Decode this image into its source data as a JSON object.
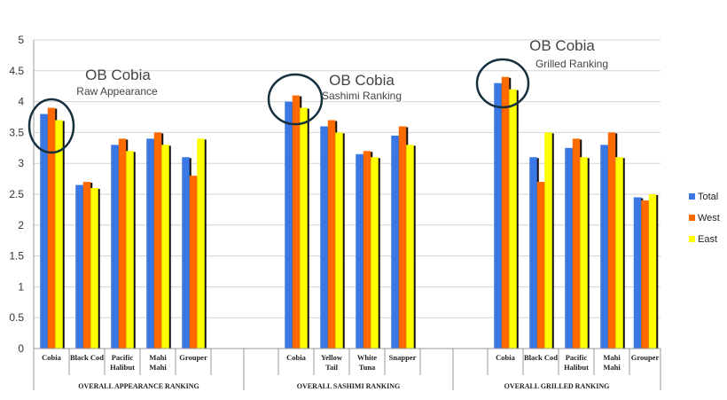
{
  "chart_data": {
    "type": "bar",
    "ylim": [
      0,
      5
    ],
    "yticks": [
      "0",
      "0.5",
      "1",
      "1.5",
      "2",
      "2.5",
      "3",
      "3.5",
      "4",
      "4.5",
      "5"
    ],
    "grid": true,
    "legend_position": "right",
    "series": [
      {
        "name": "Total",
        "color": "#3a78e6"
      },
      {
        "name": "West",
        "color": "#ff6a00"
      },
      {
        "name": "East",
        "color": "#ffff00"
      }
    ],
    "groups": [
      {
        "label": "OVERALL APPEARANCE RANKING",
        "annotation": {
          "title": "OB Cobia",
          "subtitle": "Raw Appearance"
        },
        "categories": [
          {
            "label": [
              "Cobia"
            ],
            "values": [
              3.8,
              3.9,
              3.7
            ]
          },
          {
            "label": [
              "Black Cod"
            ],
            "values": [
              2.65,
              2.7,
              2.6
            ]
          },
          {
            "label": [
              "Pacific",
              "Halibut"
            ],
            "values": [
              3.3,
              3.4,
              3.2
            ]
          },
          {
            "label": [
              "Mahi",
              "Mahi"
            ],
            "values": [
              3.4,
              3.5,
              3.3
            ]
          },
          {
            "label": [
              "Grouper"
            ],
            "values": [
              3.1,
              2.8,
              3.4
            ]
          }
        ]
      },
      {
        "label": "OVERALL SASHIMI RANKING",
        "annotation": {
          "title": "OB Cobia",
          "subtitle": "Sashimi Ranking"
        },
        "categories": [
          {
            "label": [
              "Cobia"
            ],
            "values": [
              4.0,
              4.1,
              3.9
            ]
          },
          {
            "label": [
              "Yellow",
              "Tail"
            ],
            "values": [
              3.6,
              3.7,
              3.5
            ]
          },
          {
            "label": [
              "White",
              "Tuna"
            ],
            "values": [
              3.15,
              3.2,
              3.1
            ]
          },
          {
            "label": [
              "Snapper"
            ],
            "values": [
              3.45,
              3.6,
              3.3
            ]
          }
        ]
      },
      {
        "label": "OVERALL GRILLED RANKING",
        "annotation": {
          "title": "OB Cobia",
          "subtitle": "Grilled Ranking"
        },
        "categories": [
          {
            "label": [
              "Cobia"
            ],
            "values": [
              4.3,
              4.4,
              4.2
            ]
          },
          {
            "label": [
              "Black Cod"
            ],
            "values": [
              3.1,
              2.7,
              3.5
            ]
          },
          {
            "label": [
              "Pacific",
              "Halibut"
            ],
            "values": [
              3.25,
              3.4,
              3.1
            ]
          },
          {
            "label": [
              "Mahi",
              "Mahi"
            ],
            "values": [
              3.3,
              3.5,
              3.1
            ]
          },
          {
            "label": [
              "Grouper"
            ],
            "values": [
              2.45,
              2.4,
              2.5
            ]
          }
        ]
      }
    ]
  }
}
